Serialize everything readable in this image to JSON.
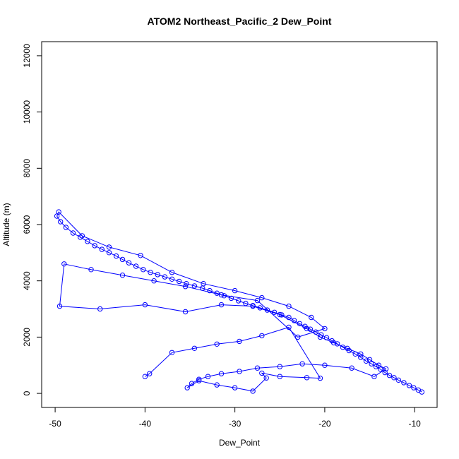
{
  "chart_data": {
    "type": "scatter",
    "title": "ATOM2 Northeast_Pacific_2 Dew_Point",
    "xlabel": "Dew_Point",
    "ylabel": "Altitude (m)",
    "xlim": [
      -51.5,
      -7.5
    ],
    "ylim": [
      -500,
      12500
    ],
    "xticks": [
      "-50",
      "-40",
      "-30",
      "-20",
      "-10"
    ],
    "yticks": [
      "0",
      "2000",
      "4000",
      "6000",
      "8000",
      "10000",
      "12000"
    ],
    "grid": false,
    "legend": "none",
    "series": [
      {
        "color": "#0000ff",
        "marker": "open-circle",
        "connected": true,
        "x": [
          -9.2,
          -9.6,
          -10.1,
          -10.6,
          -11.2,
          -11.8,
          -12.3,
          -12.8,
          -13.3,
          -13.8,
          -14.3,
          -14.8,
          -15.4,
          -16.0,
          -16.6,
          -17.3,
          -18.0,
          -18.6,
          -19.2,
          -19.8,
          -20.4,
          -21.0,
          -21.6,
          -22.2,
          -22.8,
          -23.4,
          -24.0,
          -24.8,
          -25.6,
          -26.4,
          -27.2,
          -28.0,
          -28.8,
          -29.6,
          -30.4,
          -31.2,
          -32.0,
          -32.8,
          -33.6,
          -34.5,
          -35.4,
          -36.2,
          -37.0,
          -37.8,
          -38.6,
          -39.4,
          -40.2,
          -41.0,
          -41.8,
          -42.5,
          -43.2,
          -44.0,
          -44.8,
          -45.6,
          -46.4,
          -47.2,
          -48.0,
          -48.8,
          -49.4,
          -49.8,
          -49.6,
          -47.0,
          -44.0,
          -40.5,
          -37.0,
          -33.5,
          -30.0,
          -27.0,
          -24.0,
          -21.5,
          -20.0,
          -23.0,
          -27.5,
          -31.5,
          -35.5,
          -39.0,
          -42.5,
          -46.0,
          -49.0,
          -49.5,
          -45.0,
          -40.0,
          -35.5,
          -31.5,
          -28.0,
          -25.0,
          -22.0,
          -20.5,
          -19.0,
          -17.5,
          -16.0,
          -15.0,
          -14.0,
          -13.2,
          -14.5,
          -17.0,
          -20.0,
          -22.5,
          -25.0,
          -27.5,
          -29.5,
          -31.5,
          -33.0,
          -34.0,
          -34.8,
          -35.3,
          -34.0,
          -32.0,
          -30.0,
          -28.0,
          -26.5,
          -27.0,
          -25.0,
          -22.0,
          -20.5,
          -24.0,
          -27.0,
          -29.5,
          -32.0,
          -34.5,
          -37.0,
          -39.5,
          -40.0
        ],
        "y": [
          50,
          120,
          200,
          280,
          380,
          470,
          560,
          640,
          740,
          860,
          950,
          1050,
          1150,
          1280,
          1400,
          1520,
          1640,
          1760,
          1870,
          1980,
          2080,
          2180,
          2280,
          2380,
          2480,
          2590,
          2700,
          2790,
          2880,
          2960,
          3040,
          3120,
          3200,
          3290,
          3380,
          3470,
          3560,
          3650,
          3740,
          3820,
          3900,
          3980,
          4060,
          4140,
          4220,
          4300,
          4400,
          4520,
          4640,
          4760,
          4880,
          5000,
          5120,
          5250,
          5400,
          5550,
          5700,
          5900,
          6100,
          6300,
          6450,
          5600,
          5200,
          4900,
          4300,
          3900,
          3650,
          3400,
          3100,
          2700,
          2300,
          2000,
          3300,
          3500,
          3800,
          4000,
          4200,
          4400,
          4600,
          3100,
          3000,
          3150,
          2900,
          3150,
          3100,
          2800,
          2300,
          2000,
          1800,
          1600,
          1400,
          1200,
          1000,
          870,
          600,
          900,
          1000,
          1050,
          950,
          900,
          780,
          700,
          600,
          500,
          350,
          200,
          450,
          300,
          200,
          80,
          550,
          720,
          600,
          560,
          540,
          2350,
          2050,
          1850,
          1750,
          1600,
          1450,
          700,
          600
        ]
      }
    ]
  }
}
